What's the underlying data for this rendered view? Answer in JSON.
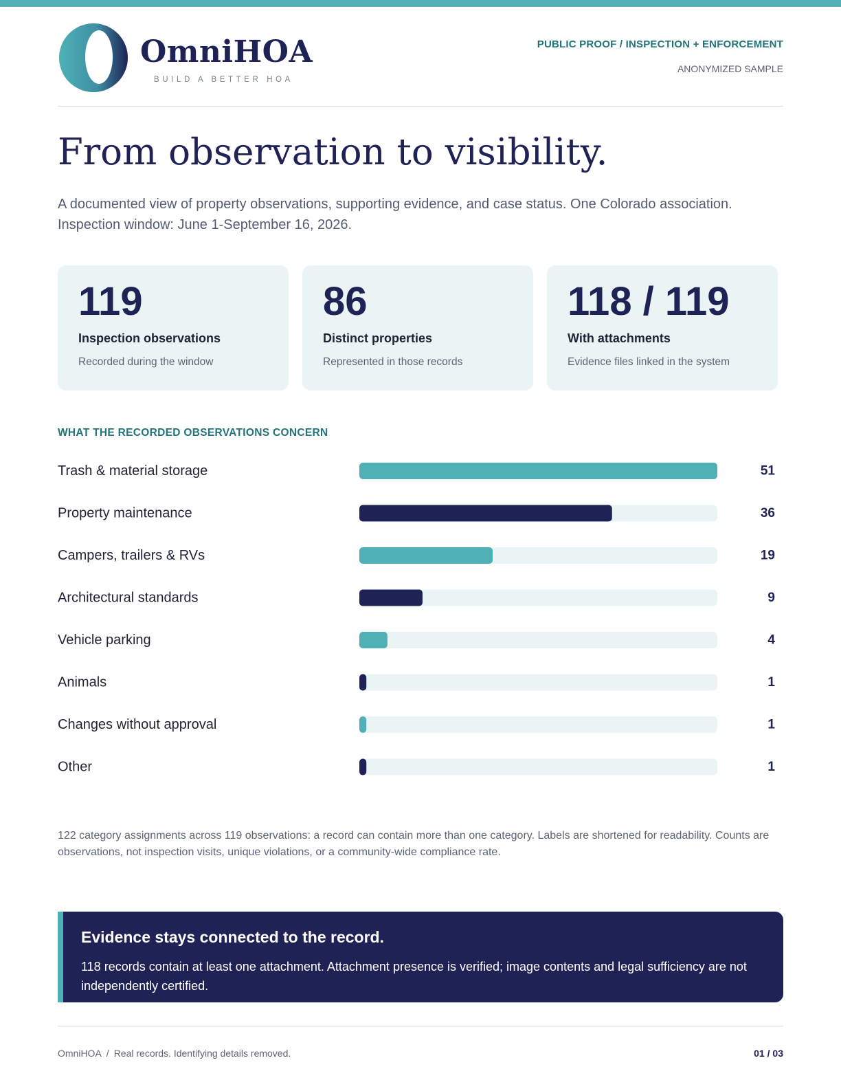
{
  "brand": {
    "name": "OmniHOA",
    "tagline": "BUILD A BETTER HOA",
    "colors": {
      "teal": "#4fb1b6",
      "navy": "#1e2255",
      "track": "#ebf4f5",
      "accent_text": "#23737a"
    }
  },
  "header": {
    "kicker": "PUBLIC PROOF / INSPECTION + ENFORCEMENT",
    "sample_note": "ANONYMIZED SAMPLE"
  },
  "headline": "From observation to visibility.",
  "intro": "A documented view of property observations, supporting evidence, and case status. One Colorado association. Inspection window: June 1-September 16, 2026.",
  "stats": [
    {
      "value": "119",
      "label": "Inspection observations",
      "sub": "Recorded during the window"
    },
    {
      "value": "86",
      "label": "Distinct properties",
      "sub": "Represented in those records"
    },
    {
      "value": "118 / 119",
      "label": "With attachments",
      "sub": "Evidence files linked in the system"
    }
  ],
  "chart_data": {
    "type": "bar",
    "orientation": "horizontal",
    "title": "WHAT THE RECORDED OBSERVATIONS CONCERN",
    "categories": [
      "Trash & material storage",
      "Property maintenance",
      "Campers, trailers & RVs",
      "Architectural standards",
      "Vehicle parking",
      "Animals",
      "Changes without approval",
      "Other"
    ],
    "values": [
      51,
      36,
      19,
      9,
      4,
      1,
      1,
      1
    ],
    "xlim": [
      0,
      51
    ],
    "grid": false,
    "bar_colors": [
      "#4fb1b6",
      "#1e2255",
      "#4fb1b6",
      "#1e2255",
      "#4fb1b6",
      "#1e2255",
      "#4fb1b6",
      "#1e2255"
    ]
  },
  "footnote": "122 category assignments across 119 observations: a record can contain more than one category. Labels are shortened for readability. Counts are observations, not inspection visits, unique violations, or a community-wide compliance rate.",
  "callout": {
    "title": "Evidence stays connected to the record.",
    "body": "118 records contain at least one attachment. Attachment presence is verified; image contents and legal sufficiency are not independently certified."
  },
  "footer": {
    "brand": "OmniHOA",
    "separator": "/",
    "note": "Real records. Identifying details removed.",
    "page": "01 / 03"
  }
}
